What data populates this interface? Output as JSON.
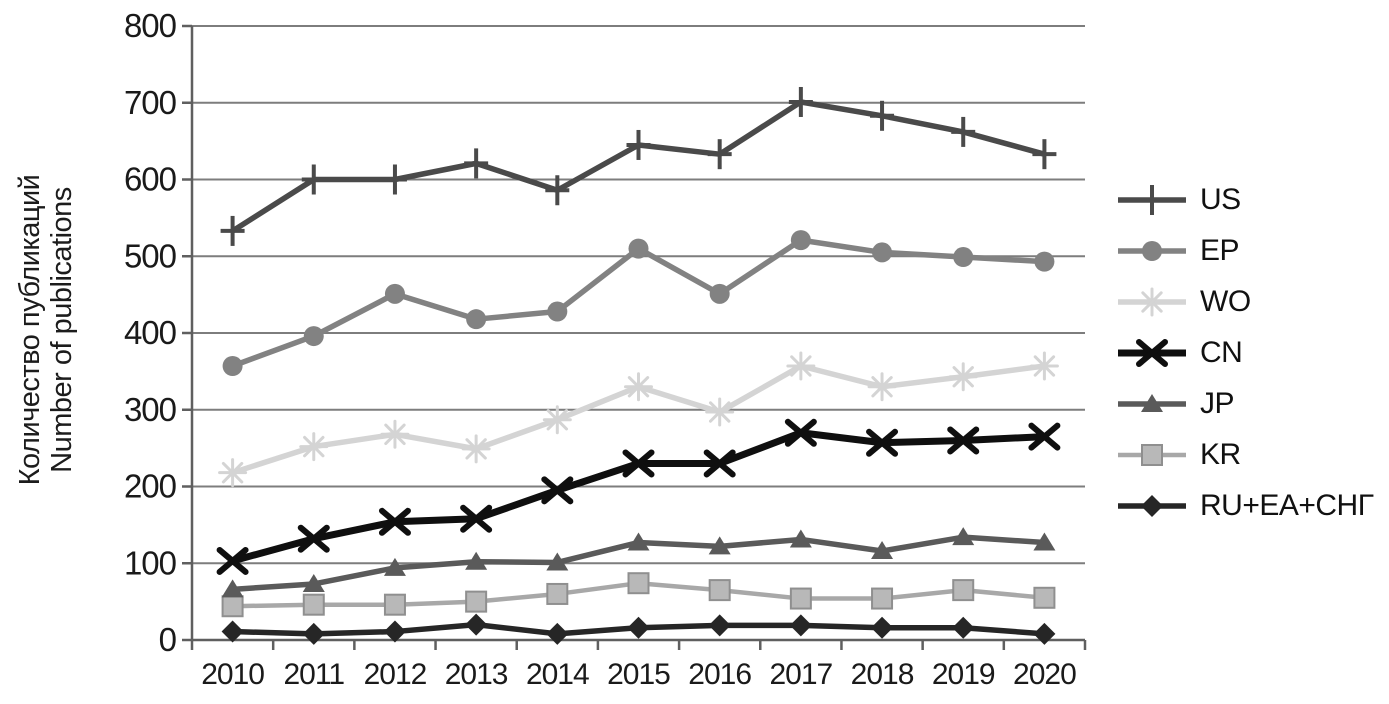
{
  "figure": {
    "y_axis_label_ru": "Количество публикаций",
    "y_axis_label_en": "Number of publications"
  },
  "chart_data": {
    "type": "line",
    "title": "",
    "xlabel": "",
    "ylabel": "Количество публикаций / Number of publications",
    "x": [
      2010,
      2011,
      2012,
      2013,
      2014,
      2015,
      2016,
      2017,
      2018,
      2019,
      2020
    ],
    "ylim": [
      0,
      800
    ],
    "ytick_step": 100,
    "grid": true,
    "legend_position": "right",
    "colors": {
      "gridline": "#7d7d7d",
      "axis": "#5f5f5f",
      "tick_text": "#1a1a1a"
    },
    "series": [
      {
        "name": "US",
        "marker": "plus",
        "color": "#4a4a4a",
        "line_width": 5.5,
        "values": [
          533,
          600,
          600,
          621,
          586,
          645,
          633,
          701,
          683,
          662,
          633
        ]
      },
      {
        "name": "EP",
        "marker": "circle",
        "color": "#828282",
        "line_width": 5.5,
        "values": [
          357,
          396,
          451,
          418,
          428,
          510,
          451,
          521,
          505,
          499,
          493
        ]
      },
      {
        "name": "WO",
        "marker": "asterisk",
        "color": "#d4d4d4",
        "line_width": 5.5,
        "values": [
          218,
          252,
          268,
          249,
          287,
          330,
          297,
          357,
          330,
          343,
          357
        ]
      },
      {
        "name": "CN",
        "marker": "x",
        "color": "#0f0f0f",
        "line_width": 7,
        "values": [
          103,
          132,
          154,
          158,
          195,
          230,
          230,
          270,
          257,
          260,
          265
        ]
      },
      {
        "name": "JP",
        "marker": "triangle",
        "color": "#5a5a5a",
        "line_width": 5.5,
        "values": [
          66,
          73,
          94,
          102,
          101,
          127,
          122,
          131,
          116,
          134,
          127
        ]
      },
      {
        "name": "KR",
        "marker": "square",
        "color": "#a8a8a8",
        "line_width": 4.5,
        "values": [
          44,
          46,
          46,
          50,
          60,
          74,
          65,
          54,
          54,
          65,
          55
        ]
      },
      {
        "name": "RU+EA+СНГ",
        "marker": "diamond",
        "color": "#262626",
        "line_width": 5.5,
        "values": [
          11,
          8,
          11,
          20,
          8,
          16,
          19,
          19,
          16,
          16,
          8
        ]
      }
    ]
  }
}
